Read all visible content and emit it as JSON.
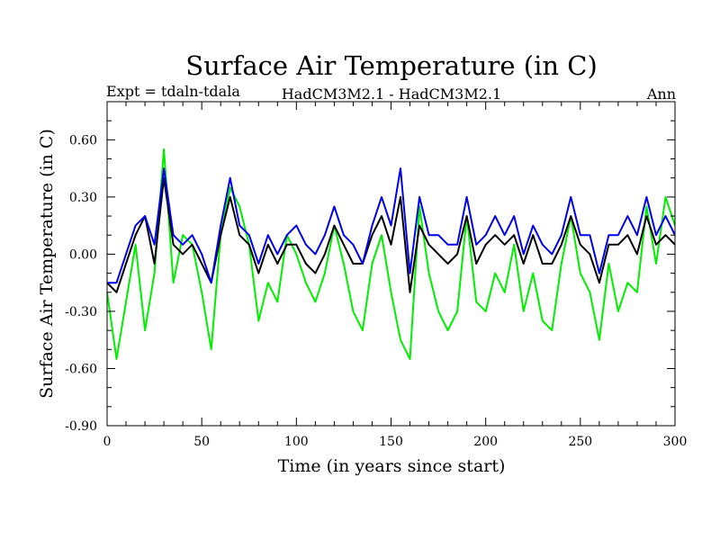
{
  "chart_data": {
    "type": "line",
    "title": "Surface Air Temperature (in C)",
    "subtitle_left": "Expt = tdaln-tdala",
    "subtitle_center": "HadCM3M2.1 - HadCM3M2.1",
    "subtitle_right": "Ann",
    "xlabel": "Time (in years since start)",
    "ylabel": "Surface Air Temperature (in C)",
    "xlim": [
      0,
      300
    ],
    "ylim": [
      -0.9,
      0.8
    ],
    "xticks": [
      0,
      50,
      100,
      150,
      200,
      250,
      300
    ],
    "xtick_labels": [
      "0",
      "50",
      "100",
      "150",
      "200",
      "250",
      "300"
    ],
    "yticks": [
      -0.9,
      -0.6,
      -0.3,
      0.0,
      0.3,
      0.6
    ],
    "ytick_labels": [
      "-0.90",
      "-0.60",
      "-0.30",
      "0.00",
      "0.30",
      "0.60"
    ],
    "grid": false,
    "legend": "none",
    "series": [
      {
        "name": "green",
        "color": "#00ee00",
        "x_start": 0,
        "x_step": 5,
        "values": [
          -0.2,
          -0.55,
          -0.25,
          0.05,
          -0.4,
          -0.1,
          0.55,
          -0.15,
          0.1,
          0.05,
          -0.2,
          -0.5,
          0.1,
          0.35,
          0.25,
          0.05,
          -0.35,
          -0.15,
          -0.25,
          0.1,
          0.0,
          -0.15,
          -0.25,
          -0.1,
          0.15,
          -0.05,
          -0.3,
          -0.4,
          -0.05,
          0.1,
          -0.2,
          -0.45,
          -0.55,
          0.25,
          -0.1,
          -0.3,
          -0.4,
          -0.3,
          0.2,
          -0.25,
          -0.3,
          -0.1,
          -0.2,
          0.05,
          -0.3,
          -0.1,
          -0.35,
          -0.4,
          -0.05,
          0.2,
          -0.1,
          -0.2,
          -0.45,
          -0.05,
          -0.3,
          -0.15,
          -0.2,
          0.25,
          -0.05,
          0.3,
          0.15
        ]
      },
      {
        "name": "black",
        "color": "#000000",
        "x_start": 0,
        "x_step": 5,
        "values": [
          -0.15,
          -0.2,
          -0.05,
          0.1,
          0.2,
          -0.05,
          0.4,
          0.05,
          0.0,
          0.05,
          -0.05,
          -0.15,
          0.1,
          0.3,
          0.1,
          0.05,
          -0.1,
          0.05,
          -0.05,
          0.05,
          0.05,
          -0.05,
          -0.1,
          0.0,
          0.15,
          0.05,
          -0.05,
          -0.05,
          0.1,
          0.2,
          0.05,
          0.3,
          -0.2,
          0.15,
          0.05,
          0.0,
          -0.05,
          0.0,
          0.2,
          -0.05,
          0.05,
          0.1,
          0.05,
          0.1,
          -0.05,
          0.1,
          -0.05,
          -0.05,
          0.05,
          0.2,
          0.05,
          0.0,
          -0.15,
          0.05,
          0.05,
          0.1,
          0.0,
          0.2,
          0.05,
          0.1,
          0.05
        ]
      },
      {
        "name": "blue",
        "color": "#0000ee",
        "x_start": 0,
        "x_step": 5,
        "values": [
          -0.15,
          -0.15,
          0.0,
          0.15,
          0.2,
          0.05,
          0.45,
          0.1,
          0.05,
          0.1,
          0.0,
          -0.15,
          0.15,
          0.4,
          0.15,
          0.1,
          -0.05,
          0.1,
          0.0,
          0.1,
          0.15,
          0.05,
          0.0,
          0.1,
          0.25,
          0.1,
          0.05,
          -0.05,
          0.15,
          0.3,
          0.15,
          0.45,
          -0.1,
          0.3,
          0.1,
          0.1,
          0.05,
          0.05,
          0.3,
          0.05,
          0.1,
          0.2,
          0.1,
          0.2,
          0.0,
          0.15,
          0.05,
          0.0,
          0.1,
          0.3,
          0.1,
          0.1,
          -0.1,
          0.1,
          0.1,
          0.2,
          0.1,
          0.3,
          0.1,
          0.2,
          0.1
        ]
      }
    ]
  }
}
